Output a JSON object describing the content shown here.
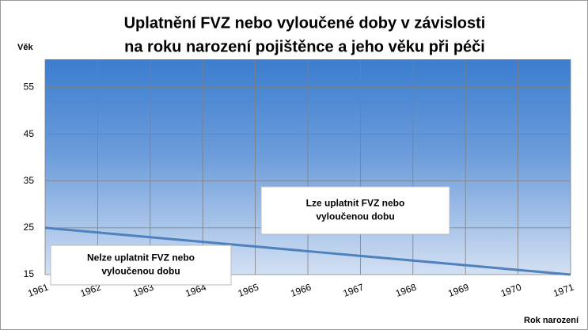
{
  "chart_data": {
    "type": "line",
    "title": [
      "Uplatnění FVZ nebo vyloučené doby v závislosti",
      "na roku narození pojištěnce a jeho věku při péči"
    ],
    "y_label": "Věk",
    "x_label": "Rok narození",
    "x": [
      1961,
      1962,
      1963,
      1964,
      1965,
      1966,
      1967,
      1968,
      1969,
      1970,
      1971
    ],
    "series": [
      {
        "color": "#4f81bd",
        "values": [
          25,
          24,
          23,
          22,
          21,
          20,
          19,
          18,
          17,
          16,
          15
        ]
      }
    ],
    "xlim": [
      1961,
      1971
    ],
    "xticks": [
      1961,
      1962,
      1963,
      1964,
      1965,
      1966,
      1967,
      1968,
      1969,
      1970,
      1971
    ],
    "ylim": [
      15,
      61
    ],
    "yticks": [
      15,
      25,
      35,
      45,
      55
    ],
    "grid": true,
    "annotations": [
      {
        "lines": [
          "Lze uplatnit FVZ nebo",
          "vyloučenou dobu"
        ]
      },
      {
        "lines": [
          "Nelze uplatnit FVZ nebo",
          "vyloučenou dobu"
        ]
      }
    ]
  }
}
